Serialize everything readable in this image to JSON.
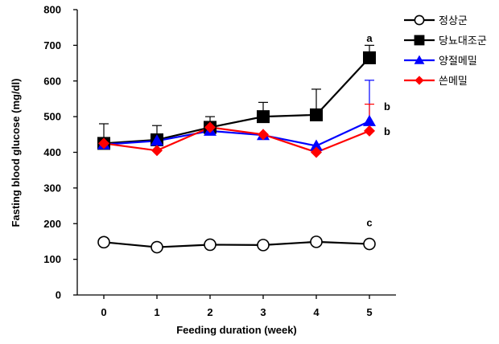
{
  "chart_data": {
    "type": "line",
    "title": "",
    "xlabel": "Feeding duration  (week)",
    "ylabel": "Fasting blood glucose  (mg/dl)",
    "x": [
      0,
      1,
      2,
      3,
      4,
      5
    ],
    "xlim": [
      -0.5,
      5.5
    ],
    "ylim": [
      0,
      800
    ],
    "yticks": [
      0,
      100,
      200,
      300,
      400,
      500,
      600,
      700,
      800
    ],
    "grid": false,
    "legend_position": "top-right",
    "series": [
      {
        "name": "정상군",
        "values": [
          148,
          134,
          141,
          140,
          149,
          143
        ],
        "errors": [
          0,
          0,
          0,
          0,
          0,
          0
        ],
        "color": "#000000",
        "marker": "open-circle",
        "letter": "c"
      },
      {
        "name": "당뇨대조군",
        "values": [
          425,
          435,
          470,
          500,
          505,
          665
        ],
        "errors": [
          55,
          40,
          30,
          40,
          72,
          35
        ],
        "color": "#000000",
        "marker": "filled-square",
        "letter": "a"
      },
      {
        "name": "양절메밀",
        "values": [
          422,
          432,
          460,
          448,
          418,
          487
        ],
        "errors": [
          0,
          0,
          0,
          0,
          0,
          115
        ],
        "color": "#0000ff",
        "marker": "triangle",
        "letter": "b"
      },
      {
        "name": "쓴메밀",
        "values": [
          425,
          405,
          470,
          450,
          400,
          460
        ],
        "errors": [
          0,
          0,
          0,
          0,
          0,
          75
        ],
        "color": "#ff0000",
        "marker": "diamond",
        "letter": "b"
      }
    ]
  }
}
